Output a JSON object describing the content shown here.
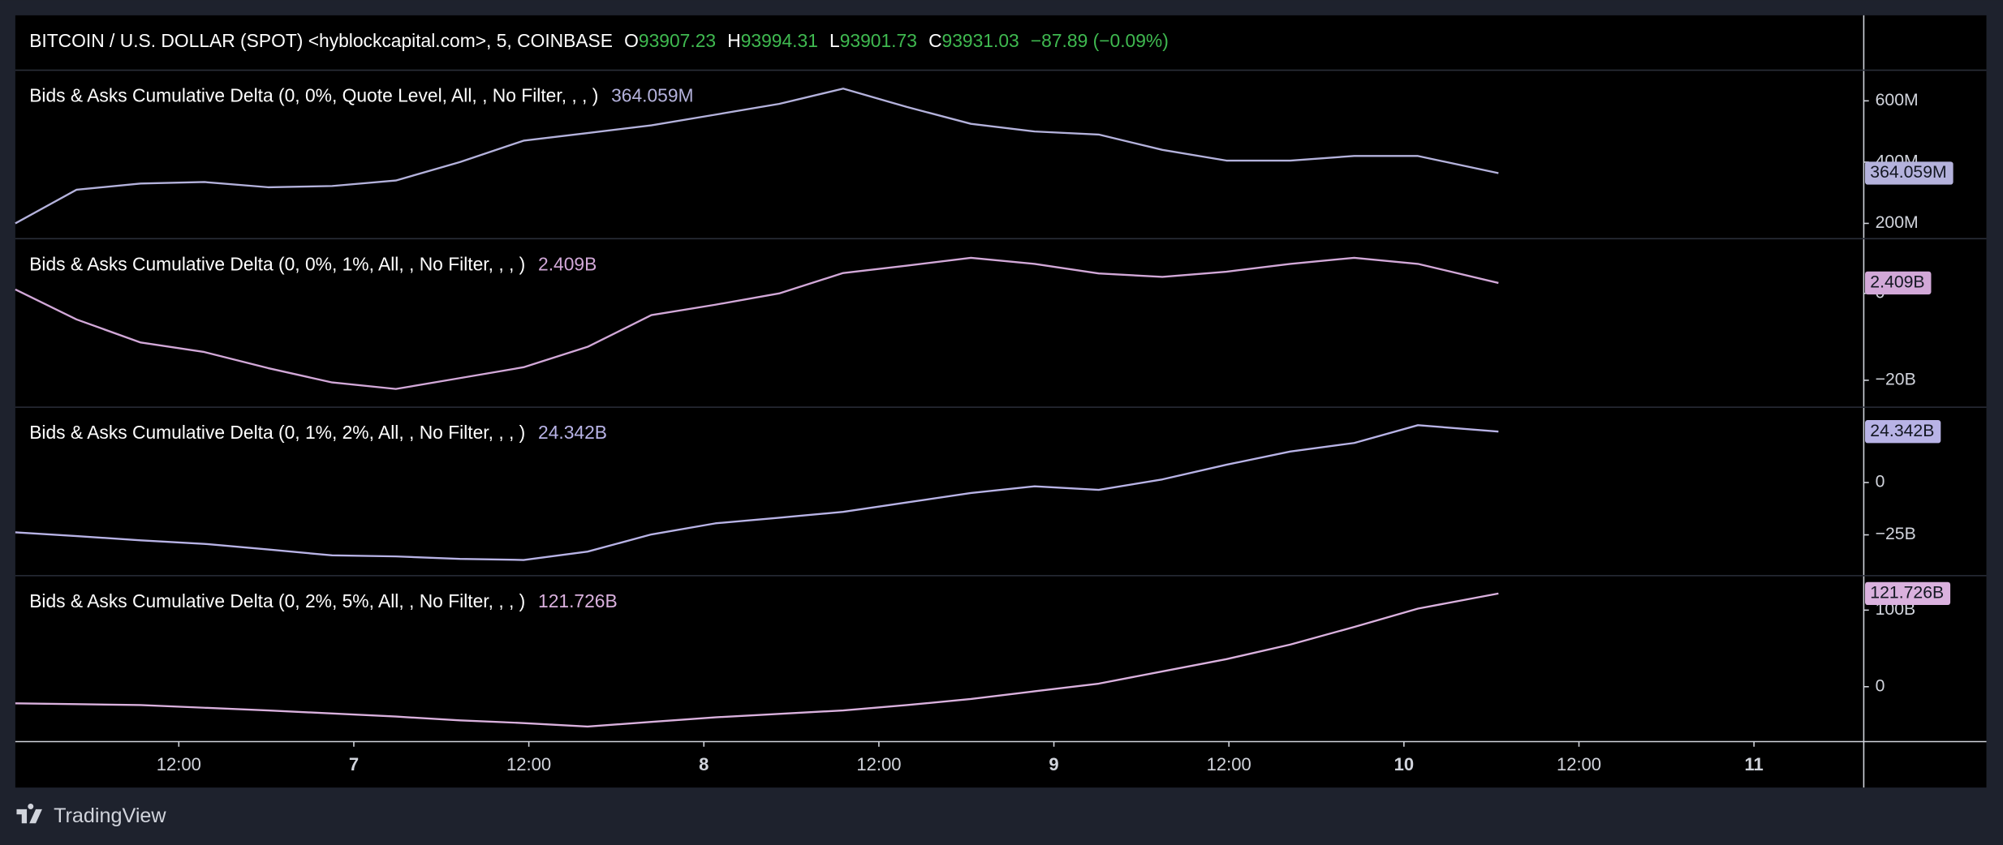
{
  "header": {
    "symbol": "BITCOIN / U.S. DOLLAR (SPOT) <hyblockcapital.com>, 5, COINBASE",
    "open_label": "O",
    "open": 93907.23,
    "high_label": "H",
    "high": 93994.31,
    "low_label": "L",
    "low": 93901.73,
    "close_label": "C",
    "close": 93931.03,
    "change": "−87.89 (−0.09%)"
  },
  "time_axis": {
    "xlim": [
      6.033,
      11.31
    ],
    "xticks": [
      {
        "value": 6.5,
        "label": "12:00"
      },
      7,
      {
        "value": 7.5,
        "label": "12:00"
      },
      8,
      {
        "value": 8.5,
        "label": "12:00"
      },
      9,
      {
        "value": 9.5,
        "label": "12:00"
      },
      10,
      {
        "value": 10.5,
        "label": "12:00"
      },
      11
    ]
  },
  "chart_data": [
    {
      "type": "line",
      "title": "Bids & Asks Cumulative Delta (0, 0%, Quote Level, All, , No Filter, , , )",
      "color": "#b4b2dc",
      "x": [
        6.033,
        6.208,
        6.391,
        6.573,
        6.755,
        6.938,
        7.12,
        7.303,
        7.485,
        7.668,
        7.85,
        8.033,
        8.215,
        8.398,
        8.58,
        8.763,
        8.945,
        9.128,
        9.31,
        9.493,
        9.675,
        9.858,
        10.04,
        10.27
      ],
      "values": [
        200000000,
        310000000,
        330000000,
        335000000,
        318000000,
        322000000,
        340000000,
        400000000,
        470000000,
        495000000,
        520000000,
        555000000,
        590000000,
        640000000,
        580000000,
        525000000,
        500000000,
        490000000,
        440000000,
        405000000,
        405000000,
        420000000,
        420000000,
        364059000
      ],
      "value_labels": [
        null,
        null,
        null,
        null,
        null,
        null,
        null,
        null,
        null,
        null,
        null,
        null,
        null,
        null,
        null,
        null,
        null,
        null,
        null,
        null,
        null,
        null,
        null,
        "364.059M"
      ],
      "ylim": [
        150000000,
        700000000
      ],
      "yticks": [
        {
          "value": 200000000,
          "label": "200M"
        },
        {
          "value": 400000000,
          "label": "400M"
        },
        {
          "value": 600000000,
          "label": "600M"
        }
      ]
    },
    {
      "type": "line",
      "title": "Bids & Asks Cumulative Delta (0, 0%, 1%, All, , No Filter, , , )",
      "color": "#d2a8d8",
      "x": [
        6.033,
        6.208,
        6.391,
        6.573,
        6.755,
        6.938,
        7.12,
        7.303,
        7.485,
        7.668,
        7.85,
        8.033,
        8.215,
        8.398,
        8.58,
        8.763,
        8.945,
        9.128,
        9.31,
        9.493,
        9.675,
        9.858,
        10.04,
        10.27
      ],
      "values": [
        900000000,
        -6000000000,
        -11300000000,
        -13500000000,
        -17200000000,
        -20500000000,
        -22000000000,
        -19500000000,
        -17000000000,
        -12300000000,
        -5000000000,
        -2600000000,
        0,
        4700000000,
        6400000000,
        8200000000,
        6800000000,
        4600000000,
        3800000000,
        5000000000,
        6800000000,
        8200000000,
        6800000000,
        2409000000
      ],
      "value_labels": [
        null,
        null,
        null,
        null,
        null,
        null,
        null,
        null,
        null,
        null,
        null,
        null,
        null,
        null,
        null,
        null,
        null,
        null,
        null,
        null,
        null,
        null,
        null,
        "2.409B"
      ],
      "ylim": [
        -26200000000,
        12600000000
      ],
      "yticks": [
        {
          "value": -20000000000,
          "label": "−20B"
        },
        0
      ]
    },
    {
      "type": "line",
      "title": "Bids & Asks Cumulative Delta (0, 1%, 2%, All, , No Filter, , , )",
      "color": "#b8b3e6",
      "x": [
        6.033,
        6.208,
        6.391,
        6.573,
        6.755,
        6.938,
        7.12,
        7.303,
        7.485,
        7.668,
        7.85,
        8.033,
        8.215,
        8.398,
        8.58,
        8.763,
        8.945,
        9.128,
        9.31,
        9.493,
        9.675,
        9.858,
        10.04,
        10.27
      ],
      "values": [
        -23800000000,
        -25600000000,
        -27600000000,
        -29300000000,
        -32000000000,
        -34800000000,
        -35300000000,
        -36500000000,
        -37000000000,
        -33000000000,
        -24800000000,
        -19500000000,
        -16800000000,
        -14000000000,
        -9500000000,
        -5000000000,
        -1800000000,
        -3500000000,
        1500000000,
        8500000000,
        14800000000,
        18900000000,
        27400000000,
        24342000000
      ],
      "value_labels": [
        null,
        null,
        null,
        null,
        null,
        null,
        null,
        null,
        null,
        null,
        null,
        null,
        null,
        null,
        null,
        null,
        null,
        null,
        null,
        null,
        null,
        null,
        null,
        "24.342B"
      ],
      "ylim": [
        -44500000000,
        36000000000
      ],
      "yticks": [
        {
          "value": -25000000000,
          "label": "−25B"
        },
        0
      ]
    },
    {
      "type": "line",
      "title": "Bids & Asks Cumulative Delta (0, 2%, 5%, All, , No Filter, , , )",
      "color": "#dab1de",
      "x": [
        6.033,
        6.208,
        6.391,
        6.573,
        6.755,
        6.938,
        7.12,
        7.303,
        7.485,
        7.668,
        7.85,
        8.033,
        8.215,
        8.398,
        8.58,
        8.763,
        8.945,
        9.128,
        9.31,
        9.493,
        9.675,
        9.858,
        10.04,
        10.27
      ],
      "values": [
        -21700000000,
        -22800000000,
        -24000000000,
        -27500000000,
        -31000000000,
        -35000000000,
        -39000000000,
        -44000000000,
        -47500000000,
        -52000000000,
        -46000000000,
        -40000000000,
        -35500000000,
        -31000000000,
        -24000000000,
        -16000000000,
        -6000000000,
        4000000000,
        20000000000,
        36000000000,
        55000000000,
        78000000000,
        102000000000,
        121726000000
      ],
      "value_labels": [
        null,
        null,
        null,
        null,
        null,
        null,
        null,
        null,
        null,
        null,
        null,
        null,
        null,
        null,
        null,
        null,
        null,
        null,
        null,
        null,
        null,
        null,
        null,
        "121.726B"
      ],
      "ylim": [
        -71700000000,
        145000000000
      ],
      "yticks": [
        0,
        {
          "value": 100000000000,
          "label": "100B"
        }
      ]
    }
  ],
  "footer": {
    "brand": "TradingView"
  }
}
